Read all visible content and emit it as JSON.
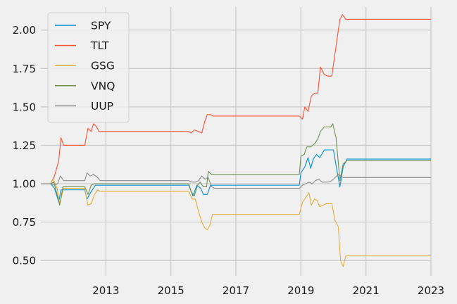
{
  "chart_data": {
    "type": "line",
    "title": "",
    "xlabel": "",
    "ylabel": "",
    "xlim": [
      2011.0,
      2023.0
    ],
    "ylim": [
      0.4,
      2.15
    ],
    "x_ticks": [
      2013,
      2015,
      2017,
      2019,
      2021,
      2023
    ],
    "y_ticks": [
      0.5,
      0.75,
      1.0,
      1.25,
      1.5,
      1.75,
      2.0
    ],
    "x_tick_labels": [
      "2013",
      "2015",
      "2017",
      "2019",
      "2021",
      "2023"
    ],
    "y_tick_labels": [
      "0.50",
      "0.75",
      "1.00",
      "1.25",
      "1.50",
      "1.75",
      "2.00"
    ],
    "grid": true,
    "legend_position": "top-left",
    "series": [
      {
        "name": "SPY",
        "color": "#008fd5",
        "points": [
          [
            2011.0,
            1.0
          ],
          [
            2011.3,
            1.0
          ],
          [
            2011.42,
            0.97
          ],
          [
            2011.55,
            0.88
          ],
          [
            2011.62,
            0.96
          ],
          [
            2011.8,
            0.96
          ],
          [
            2012.35,
            0.96
          ],
          [
            2012.42,
            0.9
          ],
          [
            2012.55,
            0.95
          ],
          [
            2012.68,
            0.99
          ],
          [
            2013.0,
            0.99
          ],
          [
            2015.55,
            0.99
          ],
          [
            2015.68,
            0.92
          ],
          [
            2015.8,
            0.99
          ],
          [
            2015.92,
            0.97
          ],
          [
            2016.0,
            0.93
          ],
          [
            2016.12,
            0.93
          ],
          [
            2016.22,
            0.99
          ],
          [
            2018.95,
            0.99
          ],
          [
            2019.0,
            1.07
          ],
          [
            2019.12,
            1.11
          ],
          [
            2019.22,
            1.17
          ],
          [
            2019.3,
            1.1
          ],
          [
            2019.38,
            1.16
          ],
          [
            2019.48,
            1.19
          ],
          [
            2019.58,
            1.17
          ],
          [
            2019.72,
            1.22
          ],
          [
            2020.0,
            1.22
          ],
          [
            2020.08,
            1.12
          ],
          [
            2020.2,
            0.98
          ],
          [
            2020.3,
            1.11
          ],
          [
            2020.42,
            1.16
          ],
          [
            2021.0,
            1.16
          ],
          [
            2023.0,
            1.16
          ]
        ]
      },
      {
        "name": "TLT",
        "color": "#fc4f30",
        "points": [
          [
            2011.0,
            1.0
          ],
          [
            2011.3,
            1.0
          ],
          [
            2011.42,
            1.05
          ],
          [
            2011.55,
            1.15
          ],
          [
            2011.62,
            1.3
          ],
          [
            2011.7,
            1.25
          ],
          [
            2012.35,
            1.25
          ],
          [
            2012.45,
            1.36
          ],
          [
            2012.55,
            1.34
          ],
          [
            2012.62,
            1.39
          ],
          [
            2012.72,
            1.37
          ],
          [
            2012.78,
            1.34
          ],
          [
            2015.55,
            1.34
          ],
          [
            2015.62,
            1.33
          ],
          [
            2015.72,
            1.35
          ],
          [
            2015.85,
            1.34
          ],
          [
            2015.95,
            1.33
          ],
          [
            2016.05,
            1.41
          ],
          [
            2016.12,
            1.45
          ],
          [
            2016.22,
            1.45
          ],
          [
            2016.3,
            1.44
          ],
          [
            2018.95,
            1.44
          ],
          [
            2019.05,
            1.42
          ],
          [
            2019.12,
            1.5
          ],
          [
            2019.22,
            1.47
          ],
          [
            2019.32,
            1.57
          ],
          [
            2019.42,
            1.59
          ],
          [
            2019.52,
            1.59
          ],
          [
            2019.6,
            1.76
          ],
          [
            2019.72,
            1.71
          ],
          [
            2019.82,
            1.7
          ],
          [
            2019.95,
            1.7
          ],
          [
            2020.05,
            1.85
          ],
          [
            2020.2,
            2.07
          ],
          [
            2020.28,
            2.1
          ],
          [
            2020.38,
            2.07
          ],
          [
            2021.0,
            2.07
          ],
          [
            2023.0,
            2.07
          ]
        ]
      },
      {
        "name": "GSG",
        "color": "#e5ae38",
        "points": [
          [
            2011.0,
            1.0
          ],
          [
            2011.3,
            1.0
          ],
          [
            2011.38,
            1.03
          ],
          [
            2011.5,
            0.97
          ],
          [
            2011.58,
            0.87
          ],
          [
            2011.7,
            0.97
          ],
          [
            2012.35,
            0.97
          ],
          [
            2012.45,
            0.86
          ],
          [
            2012.55,
            0.87
          ],
          [
            2012.65,
            0.93
          ],
          [
            2012.75,
            0.96
          ],
          [
            2012.82,
            0.95
          ],
          [
            2015.55,
            0.95
          ],
          [
            2015.65,
            0.9
          ],
          [
            2015.75,
            0.9
          ],
          [
            2015.85,
            0.82
          ],
          [
            2015.95,
            0.75
          ],
          [
            2016.05,
            0.71
          ],
          [
            2016.12,
            0.7
          ],
          [
            2016.2,
            0.73
          ],
          [
            2016.28,
            0.8
          ],
          [
            2018.95,
            0.8
          ],
          [
            2019.05,
            0.88
          ],
          [
            2019.15,
            0.91
          ],
          [
            2019.25,
            0.94
          ],
          [
            2019.32,
            0.86
          ],
          [
            2019.42,
            0.9
          ],
          [
            2019.5,
            0.89
          ],
          [
            2019.58,
            0.85
          ],
          [
            2019.68,
            0.86
          ],
          [
            2019.78,
            0.87
          ],
          [
            2019.95,
            0.87
          ],
          [
            2020.05,
            0.76
          ],
          [
            2020.15,
            0.72
          ],
          [
            2020.22,
            0.5
          ],
          [
            2020.3,
            0.46
          ],
          [
            2020.38,
            0.53
          ],
          [
            2021.0,
            0.53
          ],
          [
            2023.0,
            0.53
          ]
        ]
      },
      {
        "name": "VNQ",
        "color": "#6d904f",
        "points": [
          [
            2011.0,
            1.0
          ],
          [
            2011.3,
            1.0
          ],
          [
            2011.4,
            1.01
          ],
          [
            2011.5,
            0.93
          ],
          [
            2011.58,
            0.86
          ],
          [
            2011.68,
            0.98
          ],
          [
            2012.35,
            0.98
          ],
          [
            2012.45,
            0.93
          ],
          [
            2012.55,
            0.99
          ],
          [
            2012.65,
            1.0
          ],
          [
            2013.0,
            1.0
          ],
          [
            2015.55,
            1.0
          ],
          [
            2015.62,
            0.95
          ],
          [
            2015.72,
            0.92
          ],
          [
            2015.82,
            0.99
          ],
          [
            2015.9,
            1.01
          ],
          [
            2016.0,
            0.98
          ],
          [
            2016.1,
            0.98
          ],
          [
            2016.15,
            1.08
          ],
          [
            2016.25,
            1.06
          ],
          [
            2018.95,
            1.06
          ],
          [
            2019.0,
            1.18
          ],
          [
            2019.1,
            1.19
          ],
          [
            2019.18,
            1.24
          ],
          [
            2019.3,
            1.24
          ],
          [
            2019.42,
            1.26
          ],
          [
            2019.52,
            1.29
          ],
          [
            2019.6,
            1.34
          ],
          [
            2019.72,
            1.37
          ],
          [
            2019.82,
            1.37
          ],
          [
            2019.92,
            1.37
          ],
          [
            2019.98,
            1.39
          ],
          [
            2020.08,
            1.3
          ],
          [
            2020.2,
            1.02
          ],
          [
            2020.3,
            1.13
          ],
          [
            2020.42,
            1.15
          ],
          [
            2021.0,
            1.15
          ],
          [
            2023.0,
            1.15
          ]
        ]
      },
      {
        "name": "UUP",
        "color": "#8b8b8b",
        "points": [
          [
            2011.0,
            1.0
          ],
          [
            2011.3,
            1.0
          ],
          [
            2011.42,
            0.99
          ],
          [
            2011.52,
            1.0
          ],
          [
            2011.6,
            1.05
          ],
          [
            2011.7,
            1.02
          ],
          [
            2012.35,
            1.02
          ],
          [
            2012.42,
            1.07
          ],
          [
            2012.52,
            1.05
          ],
          [
            2012.62,
            1.06
          ],
          [
            2012.75,
            1.04
          ],
          [
            2012.82,
            1.02
          ],
          [
            2015.55,
            1.02
          ],
          [
            2015.65,
            1.01
          ],
          [
            2015.75,
            1.01
          ],
          [
            2015.85,
            1.02
          ],
          [
            2015.95,
            1.05
          ],
          [
            2016.05,
            1.03
          ],
          [
            2016.15,
            1.04
          ],
          [
            2016.25,
            0.98
          ],
          [
            2016.35,
            0.97
          ],
          [
            2018.95,
            0.97
          ],
          [
            2019.05,
            0.99
          ],
          [
            2019.15,
            1.0
          ],
          [
            2019.25,
            1.01
          ],
          [
            2019.35,
            1.0
          ],
          [
            2019.45,
            1.02
          ],
          [
            2019.55,
            1.03
          ],
          [
            2019.65,
            1.01
          ],
          [
            2019.85,
            1.01
          ],
          [
            2019.95,
            1.02
          ],
          [
            2020.15,
            1.06
          ],
          [
            2020.3,
            1.04
          ],
          [
            2020.45,
            1.04
          ],
          [
            2021.0,
            1.04
          ],
          [
            2023.0,
            1.04
          ]
        ]
      }
    ]
  }
}
